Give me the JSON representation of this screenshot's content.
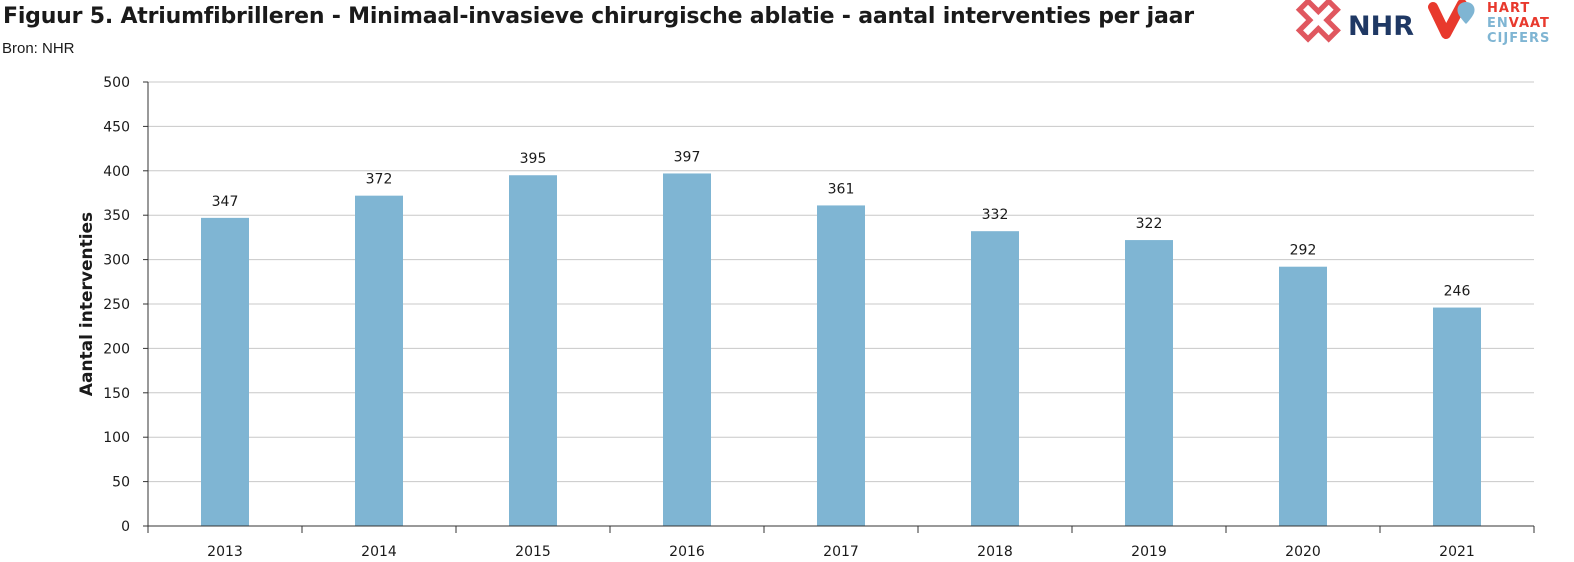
{
  "header": {
    "title": "Figuur 5. Atriumfibrilleren - Minimaal-invasieve chirurgische ablatie - aantal interventies per jaar",
    "source": "Bron: NHR"
  },
  "logos": {
    "nhr_text": "NHR",
    "hvc_line1": "HART",
    "hvc_line2a": "EN",
    "hvc_line2b": "VAAT",
    "hvc_line3": "CIJFERS"
  },
  "colors": {
    "bar": "#7fb5d3",
    "grid": "#c8c8c8",
    "axis": "#333333",
    "nhr_red": "#e0575f",
    "nhr_navy": "#1f3864",
    "hvc_red": "#e8392d",
    "hvc_blue": "#7fb5d3"
  },
  "chart_data": {
    "type": "bar",
    "title": "",
    "xlabel": "",
    "ylabel": "Aantal interventies",
    "categories": [
      "2013",
      "2014",
      "2015",
      "2016",
      "2017",
      "2018",
      "2019",
      "2020",
      "2021"
    ],
    "values": [
      347,
      372,
      395,
      397,
      361,
      332,
      322,
      292,
      246
    ],
    "data_labels": [
      "347",
      "372",
      "395",
      "397",
      "361",
      "332",
      "322",
      "292",
      "246"
    ],
    "ylim": [
      0,
      500
    ],
    "yticks": [
      0,
      50,
      100,
      150,
      200,
      250,
      300,
      350,
      400,
      450,
      500
    ],
    "grid": true,
    "legend": "none"
  }
}
